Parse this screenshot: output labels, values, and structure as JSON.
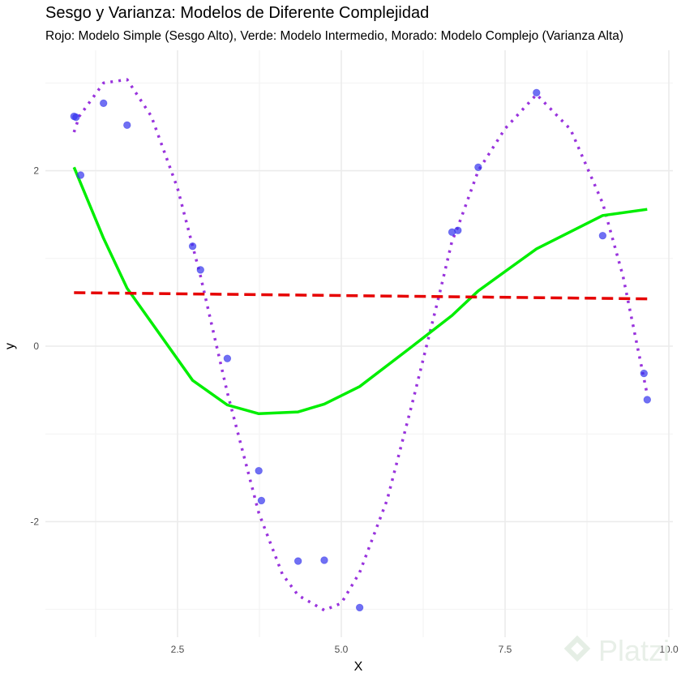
{
  "chart_data": {
    "type": "scatter",
    "title": "Sesgo y Varianza: Modelos de Diferente Complejidad",
    "subtitle": "Rojo: Modelo Simple (Sesgo Alto), Verde: Modelo Intermedio, Morado: Modelo Complejo (Varianza Alta)",
    "xlabel": "X",
    "ylabel": "y",
    "xlim": [
      0.6,
      10.1
    ],
    "ylim": [
      -3.3,
      3.5
    ],
    "x_ticks": [
      2.5,
      5.0,
      7.5,
      10.0
    ],
    "x_tick_labels": [
      "2.5",
      "5.0",
      "7.5",
      "10.0"
    ],
    "y_ticks": [
      -2,
      0,
      2
    ],
    "y_tick_labels": [
      "-2",
      "0",
      "2"
    ],
    "grid": true,
    "colors": {
      "points": "#3333ee",
      "simple": "#e60000",
      "intermediate": "#00ee00",
      "complex": "#9933dd"
    },
    "points": {
      "x": [
        0.92,
        0.95,
        1.02,
        1.37,
        1.73,
        2.73,
        2.85,
        3.26,
        3.74,
        3.78,
        4.34,
        4.74,
        5.28,
        6.69,
        6.78,
        7.09,
        7.98,
        8.99,
        9.62,
        9.67
      ],
      "y": [
        2.62,
        2.61,
        1.95,
        2.77,
        2.52,
        1.14,
        0.87,
        -0.14,
        -1.42,
        -1.76,
        -2.45,
        -2.44,
        -2.98,
        1.3,
        1.32,
        2.04,
        2.89,
        1.26,
        -0.31,
        -0.61
      ]
    },
    "series": [
      {
        "type": "line",
        "style": "dashed",
        "x": [
          0.92,
          9.67
        ],
        "y": [
          0.61,
          0.54
        ]
      },
      {
        "type": "line",
        "style": "solid",
        "x": [
          0.92,
          1.37,
          1.73,
          2.73,
          3.26,
          3.74,
          4.34,
          4.74,
          5.28,
          6.0,
          6.69,
          7.09,
          7.98,
          8.99,
          9.67
        ],
        "y": [
          2.04,
          1.23,
          0.66,
          -0.39,
          -0.67,
          -0.77,
          -0.75,
          -0.66,
          -0.46,
          -0.05,
          0.35,
          0.63,
          1.11,
          1.49,
          1.56
        ]
      },
      {
        "type": "line",
        "style": "dotted",
        "x": [
          0.92,
          1.0,
          1.37,
          1.73,
          2.1,
          2.5,
          2.85,
          3.26,
          3.74,
          4.1,
          4.34,
          4.74,
          5.0,
          5.28,
          5.7,
          6.1,
          6.5,
          6.69,
          6.78,
          7.09,
          7.5,
          7.98,
          8.5,
          8.99,
          9.3,
          9.67
        ],
        "y": [
          2.44,
          2.62,
          3.0,
          3.04,
          2.62,
          1.8,
          0.8,
          -0.53,
          -1.9,
          -2.6,
          -2.84,
          -3.01,
          -2.93,
          -2.58,
          -1.75,
          -0.6,
          0.6,
          1.2,
          1.36,
          2.0,
          2.48,
          2.87,
          2.47,
          1.63,
          0.8,
          -0.55
        ]
      }
    ],
    "watermark": "Platzi"
  }
}
